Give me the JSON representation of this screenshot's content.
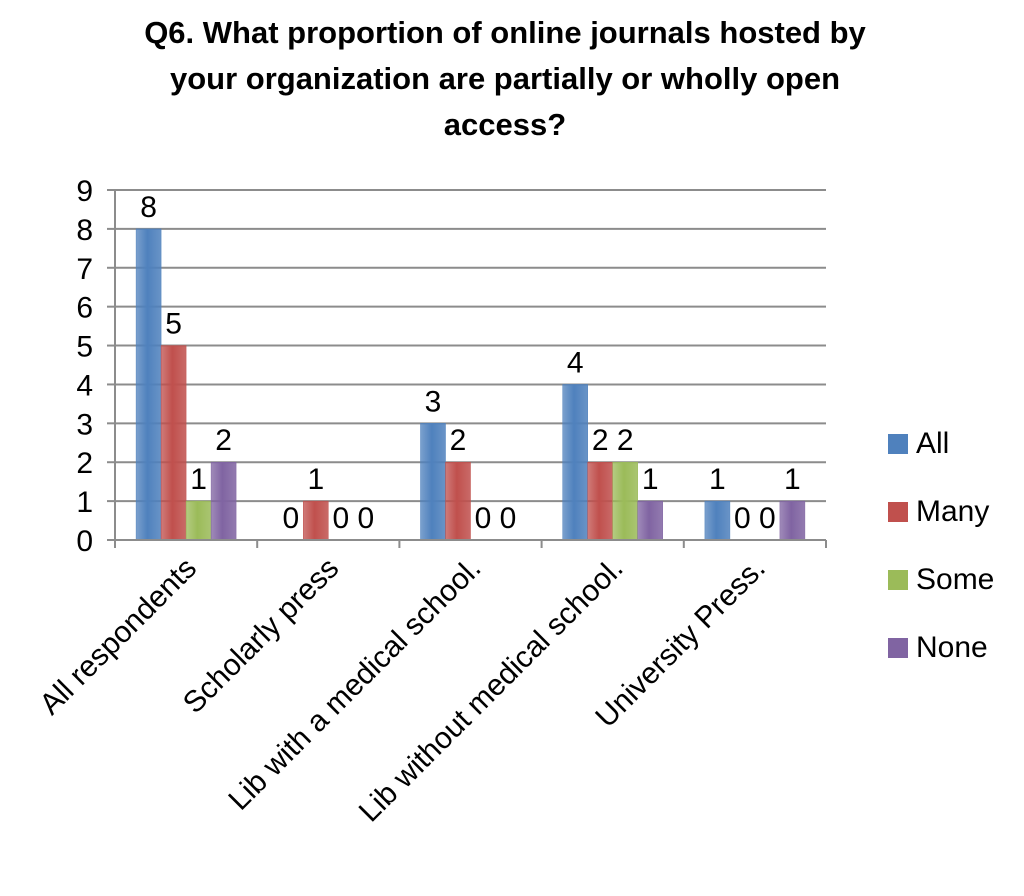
{
  "chart_data": {
    "type": "bar",
    "title": "Q6. What proportion of online journals hosted by\nyour organization are partially or wholly open\naccess?",
    "categories": [
      "All respondents",
      "Scholarly press",
      "Lib with a medical school.",
      "Lib without medical school.",
      "University Press."
    ],
    "series": [
      {
        "name": "All",
        "color": "#4f81bd",
        "values": [
          8,
          0,
          3,
          4,
          1
        ]
      },
      {
        "name": "Many",
        "color": "#c0504d",
        "values": [
          5,
          1,
          2,
          2,
          0
        ]
      },
      {
        "name": "Some",
        "color": "#9bbb59",
        "values": [
          1,
          0,
          0,
          2,
          0
        ]
      },
      {
        "name": "None",
        "color": "#8064a2",
        "values": [
          2,
          0,
          0,
          1,
          1
        ]
      }
    ],
    "ylim": [
      0,
      9
    ],
    "yticks": [
      0,
      1,
      2,
      3,
      4,
      5,
      6,
      7,
      8,
      9
    ],
    "grid": true,
    "legend": "right",
    "data_labels": true
  }
}
